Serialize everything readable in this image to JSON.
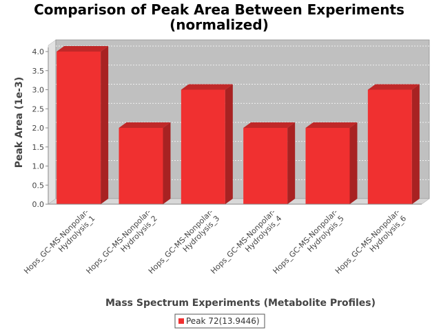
{
  "chart_data": {
    "type": "bar",
    "title_lines": [
      "Comparison of Peak Area Between Experiments",
      "(normalized)"
    ],
    "xlabel": "Mass Spectrum Experiments (Metabolite Profiles)",
    "ylabel": "Peak Area (1e-3)",
    "categories": [
      [
        "Hops_GC-MS-Nonpolar-",
        "Hydrolysis_1"
      ],
      [
        "Hops_GC-MS-Nonpolar-",
        "Hydrolysis_2"
      ],
      [
        "Hops_GC-MS-Nonpolar-",
        "Hydrolysis_3"
      ],
      [
        "Hops_GC-MS-Nonpolar-",
        "Hydrolysis_4"
      ],
      [
        "Hops_GC-MS-Nonpolar-",
        "Hydrolysis_5"
      ],
      [
        "Hops_GC-MS-Nonpolar-",
        "Hydrolysis_6"
      ]
    ],
    "series": [
      {
        "name": "Peak 72(13.9446)",
        "values": [
          4.0,
          2.0,
          3.0,
          2.0,
          2.0,
          3.0
        ]
      }
    ],
    "ylim": [
      0,
      4.0
    ],
    "yticks": [
      "0.0",
      "0.5",
      "1.0",
      "1.5",
      "2.0",
      "2.5",
      "3.0",
      "3.5",
      "4.0"
    ],
    "grid": true,
    "legend_position": "bottom",
    "colors": {
      "bar_front": "#f03030",
      "bar_top": "#c02828",
      "bar_side": "#a82222",
      "plot_back": "#c0c0c0",
      "plot_floor": "#d8d8d8",
      "plot_wall": "#e2e2e2",
      "gridline": "#ffffff"
    }
  }
}
